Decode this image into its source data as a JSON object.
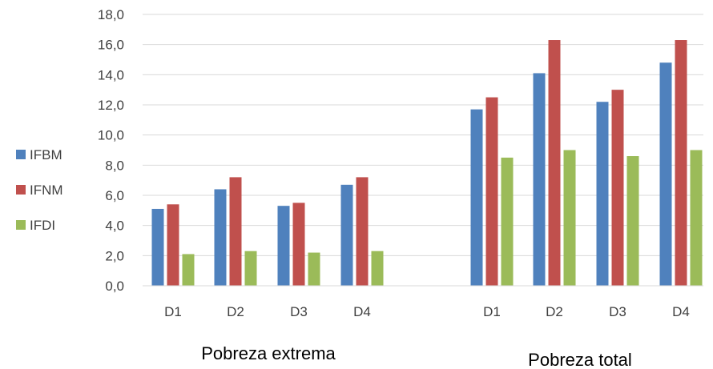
{
  "chart_data": {
    "type": "bar",
    "categories": [
      "D1",
      "D2",
      "D3",
      "D4",
      "D1",
      "D2",
      "D3",
      "D4"
    ],
    "groups": [
      {
        "label": "Pobreza extrema",
        "category_indices": [
          0,
          1,
          2,
          3
        ]
      },
      {
        "label": "Pobreza total",
        "category_indices": [
          4,
          5,
          6,
          7
        ]
      }
    ],
    "series": [
      {
        "name": "IFBM",
        "color": "#4F81BD",
        "values": [
          5.1,
          6.4,
          5.3,
          6.7,
          11.7,
          14.1,
          12.2,
          14.8
        ]
      },
      {
        "name": "IFNM",
        "color": "#C0504D",
        "values": [
          5.4,
          7.2,
          5.5,
          7.2,
          12.5,
          16.3,
          13.0,
          16.3
        ]
      },
      {
        "name": "IFDI",
        "color": "#9BBB59",
        "values": [
          2.1,
          2.3,
          2.2,
          2.3,
          8.5,
          9.0,
          8.6,
          9.0
        ]
      }
    ],
    "ylim": [
      0,
      18
    ],
    "yticks": [
      "0,0",
      "2,0",
      "4,0",
      "6,0",
      "8,0",
      "10,0",
      "12,0",
      "14,0",
      "16,0",
      "18,0"
    ],
    "grid": true,
    "legend_position": "left",
    "title": "",
    "xlabel": "",
    "ylabel": ""
  }
}
